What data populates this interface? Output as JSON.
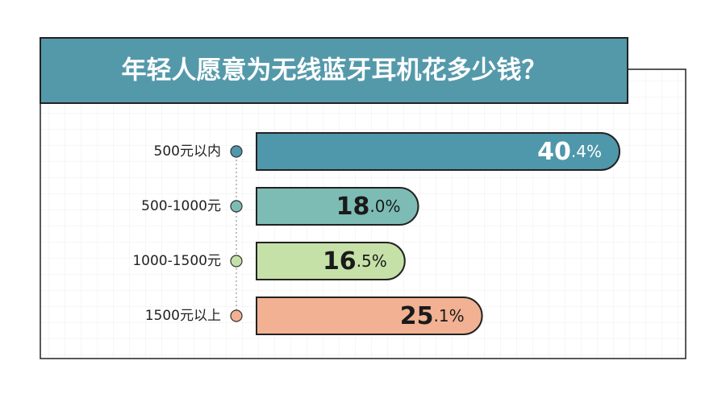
{
  "chart_data": {
    "type": "bar",
    "orientation": "horizontal",
    "title": "年轻人愿意为无线蓝牙耳机花多少钱？",
    "categories": [
      "500元以内",
      "500-1000元",
      "1000-1500元",
      "1500元以上"
    ],
    "values": [
      40.4,
      18.0,
      16.5,
      25.1
    ],
    "value_labels": [
      "40.4%",
      "18.0%",
      "16.5%",
      "25.1%"
    ],
    "colors": [
      "#4f97ab",
      "#7dbcb5",
      "#c5e1a8",
      "#f2b193"
    ]
  }
}
